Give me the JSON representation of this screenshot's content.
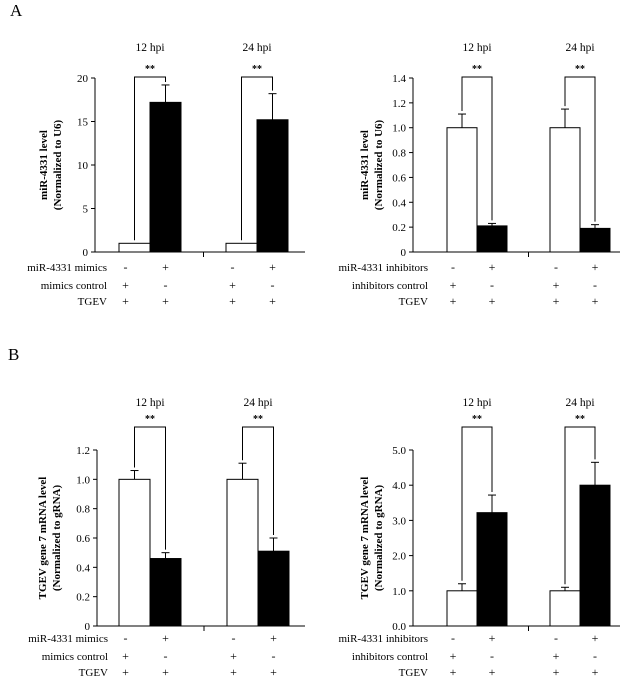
{
  "figure": {
    "panel_labels": [
      "A",
      "B"
    ]
  },
  "colors": {
    "white_bar": "#ffffff",
    "black_bar": "#000000",
    "axis": "#000000"
  },
  "chart_data": [
    {
      "type": "bar",
      "panel": "A",
      "ylabel_line1": "miR-4331 level",
      "ylabel_line2": "(Normalized to U6)",
      "ylim": [
        0,
        20
      ],
      "yticks": [
        "0",
        "5",
        "10",
        "15",
        "20"
      ],
      "groups": [
        "12 hpi",
        "24 hpi"
      ],
      "series": [
        {
          "name": "mimics control",
          "color": "white",
          "values": [
            1.0,
            1.0
          ],
          "errors": [
            0.0,
            0.0
          ]
        },
        {
          "name": "miR-4331 mimics",
          "color": "black",
          "values": [
            17.2,
            15.2
          ],
          "errors": [
            2.0,
            3.0
          ]
        }
      ],
      "significance": [
        "**",
        "**"
      ],
      "condition_rows": [
        {
          "label": "miR-4331 mimics",
          "signs": [
            "-",
            "+",
            "-",
            "+"
          ]
        },
        {
          "label": "mimics control",
          "signs": [
            "+",
            "-",
            "+",
            "-"
          ]
        },
        {
          "label": "TGEV",
          "signs": [
            "+",
            "+",
            "+",
            "+"
          ]
        }
      ]
    },
    {
      "type": "bar",
      "panel": "A",
      "ylabel_line1": "miR-4331 level",
      "ylabel_line2": "(Normalized to U6)",
      "ylim": [
        0,
        1.4
      ],
      "yticks": [
        "0",
        "0.2",
        "0.4",
        "0.6",
        "0.8",
        "1.0",
        "1.2",
        "1.4"
      ],
      "groups": [
        "12 hpi",
        "24 hpi"
      ],
      "series": [
        {
          "name": "inhibitors control",
          "color": "white",
          "values": [
            1.0,
            1.0
          ],
          "errors": [
            0.11,
            0.15
          ]
        },
        {
          "name": "miR-4331 inhibitors",
          "color": "black",
          "values": [
            0.21,
            0.19
          ],
          "errors": [
            0.02,
            0.03
          ]
        }
      ],
      "significance": [
        "**",
        "**"
      ],
      "condition_rows": [
        {
          "label": "miR-4331 inhibitors",
          "signs": [
            "-",
            "+",
            "-",
            "+"
          ]
        },
        {
          "label": "inhibitors control",
          "signs": [
            "+",
            "-",
            "+",
            "-"
          ]
        },
        {
          "label": "TGEV",
          "signs": [
            "+",
            "+",
            "+",
            "+"
          ]
        }
      ]
    },
    {
      "type": "bar",
      "panel": "B",
      "ylabel_line1": "TGEV gene 7 mRNA level",
      "ylabel_line2": "(Normalized to gRNA)",
      "ylim": [
        0,
        1.2
      ],
      "yticks": [
        "0",
        "0.2",
        "0.4",
        "0.6",
        "0.8",
        "1.0",
        "1.2"
      ],
      "groups": [
        "12 hpi",
        "24 hpi"
      ],
      "series": [
        {
          "name": "mimics control",
          "color": "white",
          "values": [
            1.0,
            1.0
          ],
          "errors": [
            0.06,
            0.11
          ]
        },
        {
          "name": "miR-4331 mimics",
          "color": "black",
          "values": [
            0.46,
            0.51
          ],
          "errors": [
            0.04,
            0.09
          ]
        }
      ],
      "significance": [
        "**",
        "**"
      ],
      "condition_rows": [
        {
          "label": "miR-4331 mimics",
          "signs": [
            "-",
            "+",
            "-",
            "+"
          ]
        },
        {
          "label": "mimics control",
          "signs": [
            "+",
            "-",
            "+",
            "-"
          ]
        },
        {
          "label": "TGEV",
          "signs": [
            "+",
            "+",
            "+",
            "+"
          ]
        }
      ]
    },
    {
      "type": "bar",
      "panel": "B",
      "ylabel_line1": "TGEV gene 7 mRNA level",
      "ylabel_line2": "(Normalized to gRNA)",
      "ylim": [
        0,
        5.0
      ],
      "yticks": [
        "0.0",
        "1.0",
        "2.0",
        "3.0",
        "4.0",
        "5.0"
      ],
      "groups": [
        "12 hpi",
        "24 hpi"
      ],
      "series": [
        {
          "name": "inhibitors control",
          "color": "white",
          "values": [
            1.0,
            1.0
          ],
          "errors": [
            0.2,
            0.1
          ]
        },
        {
          "name": "miR-4331 inhibitors",
          "color": "black",
          "values": [
            3.22,
            4.0
          ],
          "errors": [
            0.5,
            0.65
          ]
        }
      ],
      "significance": [
        "**",
        "**"
      ],
      "condition_rows": [
        {
          "label": "miR-4331 inhibitors",
          "signs": [
            "-",
            "+",
            "-",
            "+"
          ]
        },
        {
          "label": "inhibitors control",
          "signs": [
            "+",
            "-",
            "+",
            "-"
          ]
        },
        {
          "label": "TGEV",
          "signs": [
            "+",
            "+",
            "+",
            "+"
          ]
        }
      ]
    }
  ]
}
